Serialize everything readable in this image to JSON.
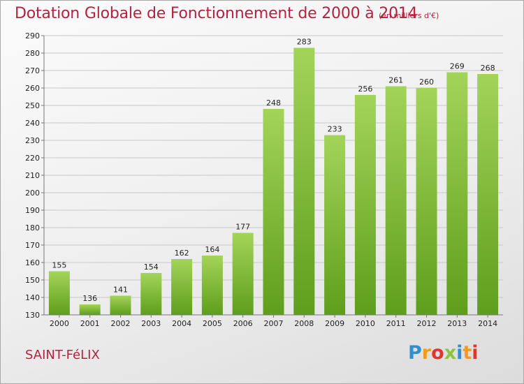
{
  "header": {
    "title": "Dotation Globale de Fonctionnement de 2000 à 2014",
    "unit": "(en milliers d'€)"
  },
  "footer": {
    "city": "SAINT-FéLIX",
    "logo_letters": [
      "P",
      "r",
      "o",
      "x",
      "i",
      "t",
      "i"
    ],
    "logo_colors": [
      "#2f8fd0",
      "#f39a1e",
      "#e2352f",
      "#8cc43c",
      "#2f8fd0",
      "#f39a1e",
      "#e2352f"
    ]
  },
  "colors": {
    "title": "#b6223e",
    "bar_light": "#a3d45a",
    "bar_dark": "#5f9e1c",
    "grid": "#c8c8c8"
  },
  "chart_data": {
    "type": "bar",
    "title": "Dotation Globale de Fonctionnement de 2000 à 2014",
    "subtitle": "(en milliers d'€)",
    "xlabel": "",
    "ylabel": "",
    "categories": [
      "2000",
      "2001",
      "2002",
      "2003",
      "2004",
      "2005",
      "2006",
      "2007",
      "2008",
      "2009",
      "2010",
      "2011",
      "2012",
      "2013",
      "2014"
    ],
    "values": [
      155,
      136,
      141,
      154,
      162,
      164,
      177,
      248,
      283,
      233,
      256,
      261,
      260,
      269,
      268
    ],
    "ylim": [
      130,
      290
    ],
    "ytick_step": 10,
    "grid": true,
    "legend": "none"
  }
}
